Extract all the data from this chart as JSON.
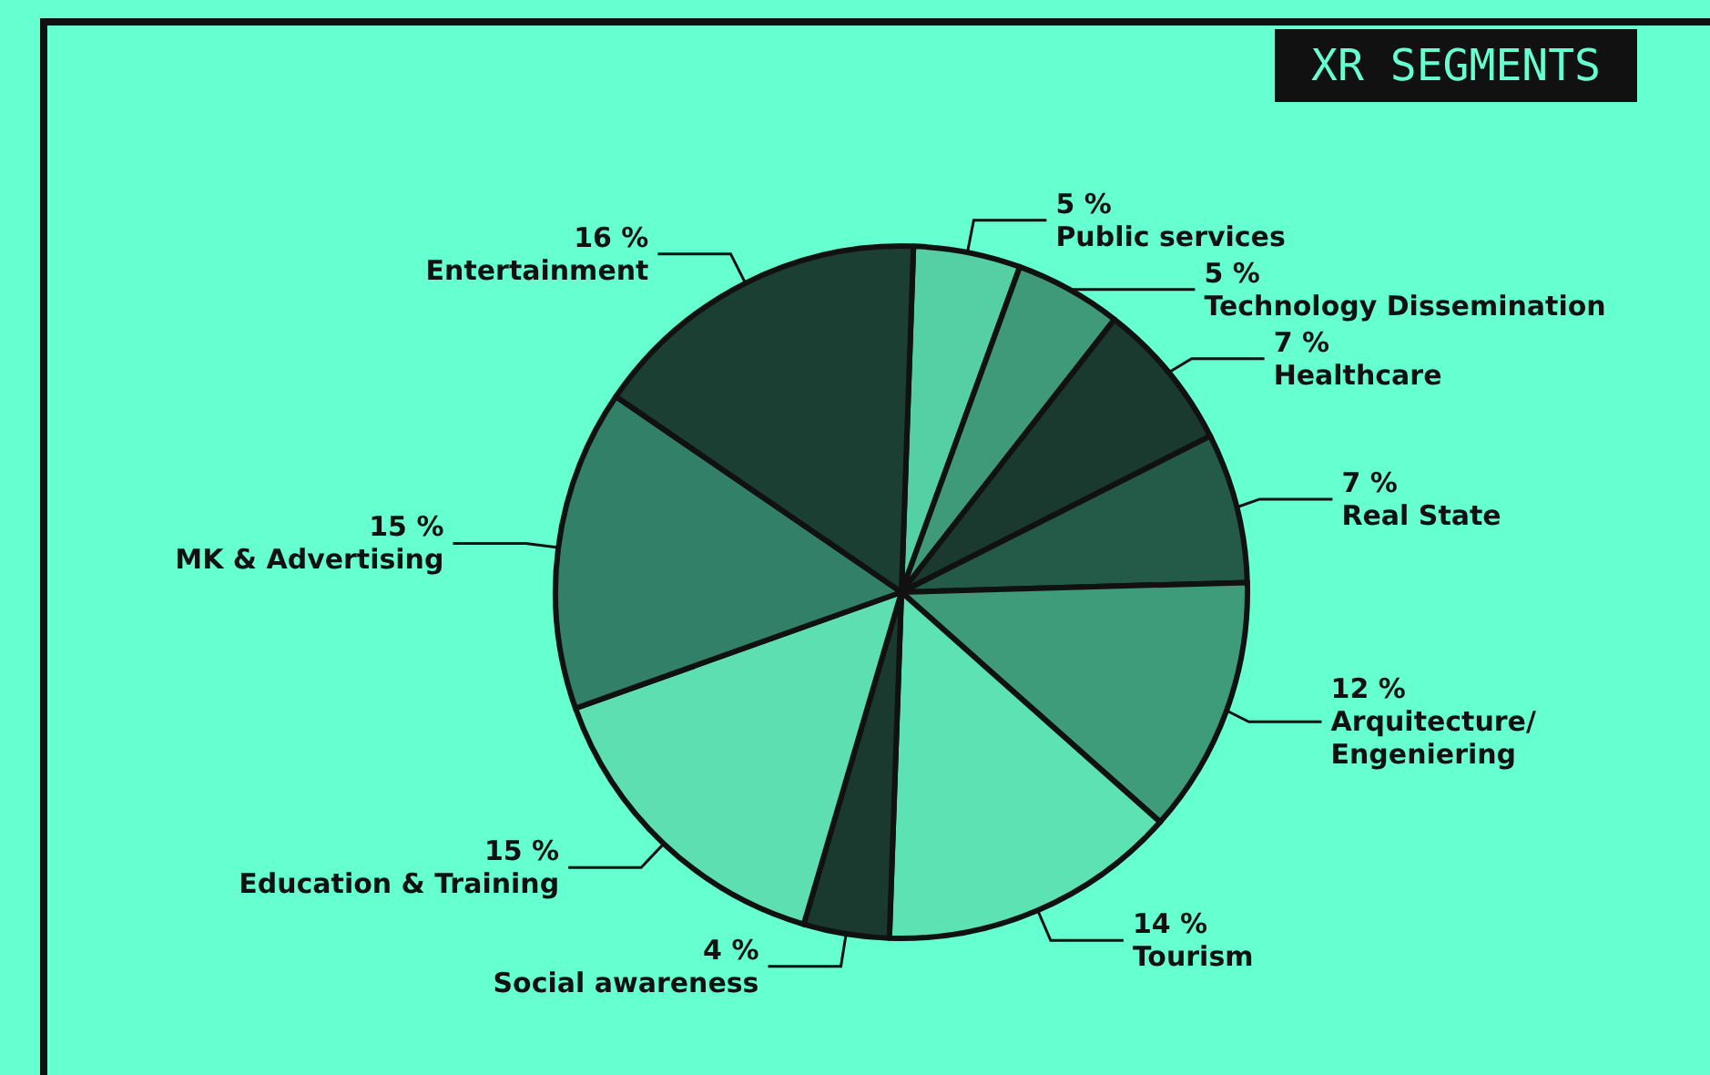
{
  "chart_data": {
    "type": "pie",
    "title": "XR SEGMENTS",
    "categories": [
      "Public services",
      "Technology Dissemination",
      "Healthcare",
      "Real State",
      "Arquitecture/\nEngeniering",
      "Tourism",
      "Social awareness",
      "Education & Training",
      "MK & Advertising",
      "Entertainment"
    ],
    "values": [
      5,
      5,
      7,
      7,
      12,
      14,
      4,
      15,
      15,
      16
    ],
    "value_labels": [
      "5 %",
      "5 %",
      "7 %",
      "7 %",
      "12 %",
      "14 %",
      "4 %",
      "15 %",
      "15 %",
      "16 %"
    ],
    "colors": [
      "#55cfa4",
      "#3e9a79",
      "#1a3a2f",
      "#245b48",
      "#3f9c7b",
      "#5de2b4",
      "#1a3a2f",
      "#5ddfb2",
      "#338069",
      "#1c3f33"
    ],
    "legend": false
  }
}
